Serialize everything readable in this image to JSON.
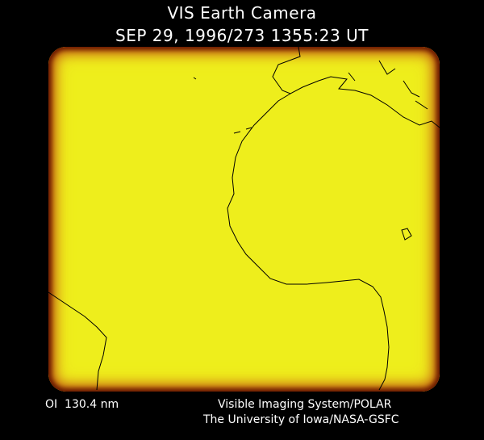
{
  "header": {
    "title": "VIS Earth Camera",
    "timestamp": "SEP 29, 1996/273 1355:23 UT"
  },
  "footer": {
    "wavelength": "OI  130.4 nm",
    "instrument": "Visible Imaging System/POLAR",
    "institution": "The University of Iowa/NASA-GSFC"
  },
  "colors": {
    "background": "#000000",
    "image_fill": "#eeee1c",
    "limb": "#c06010",
    "coastline": "#000000"
  }
}
